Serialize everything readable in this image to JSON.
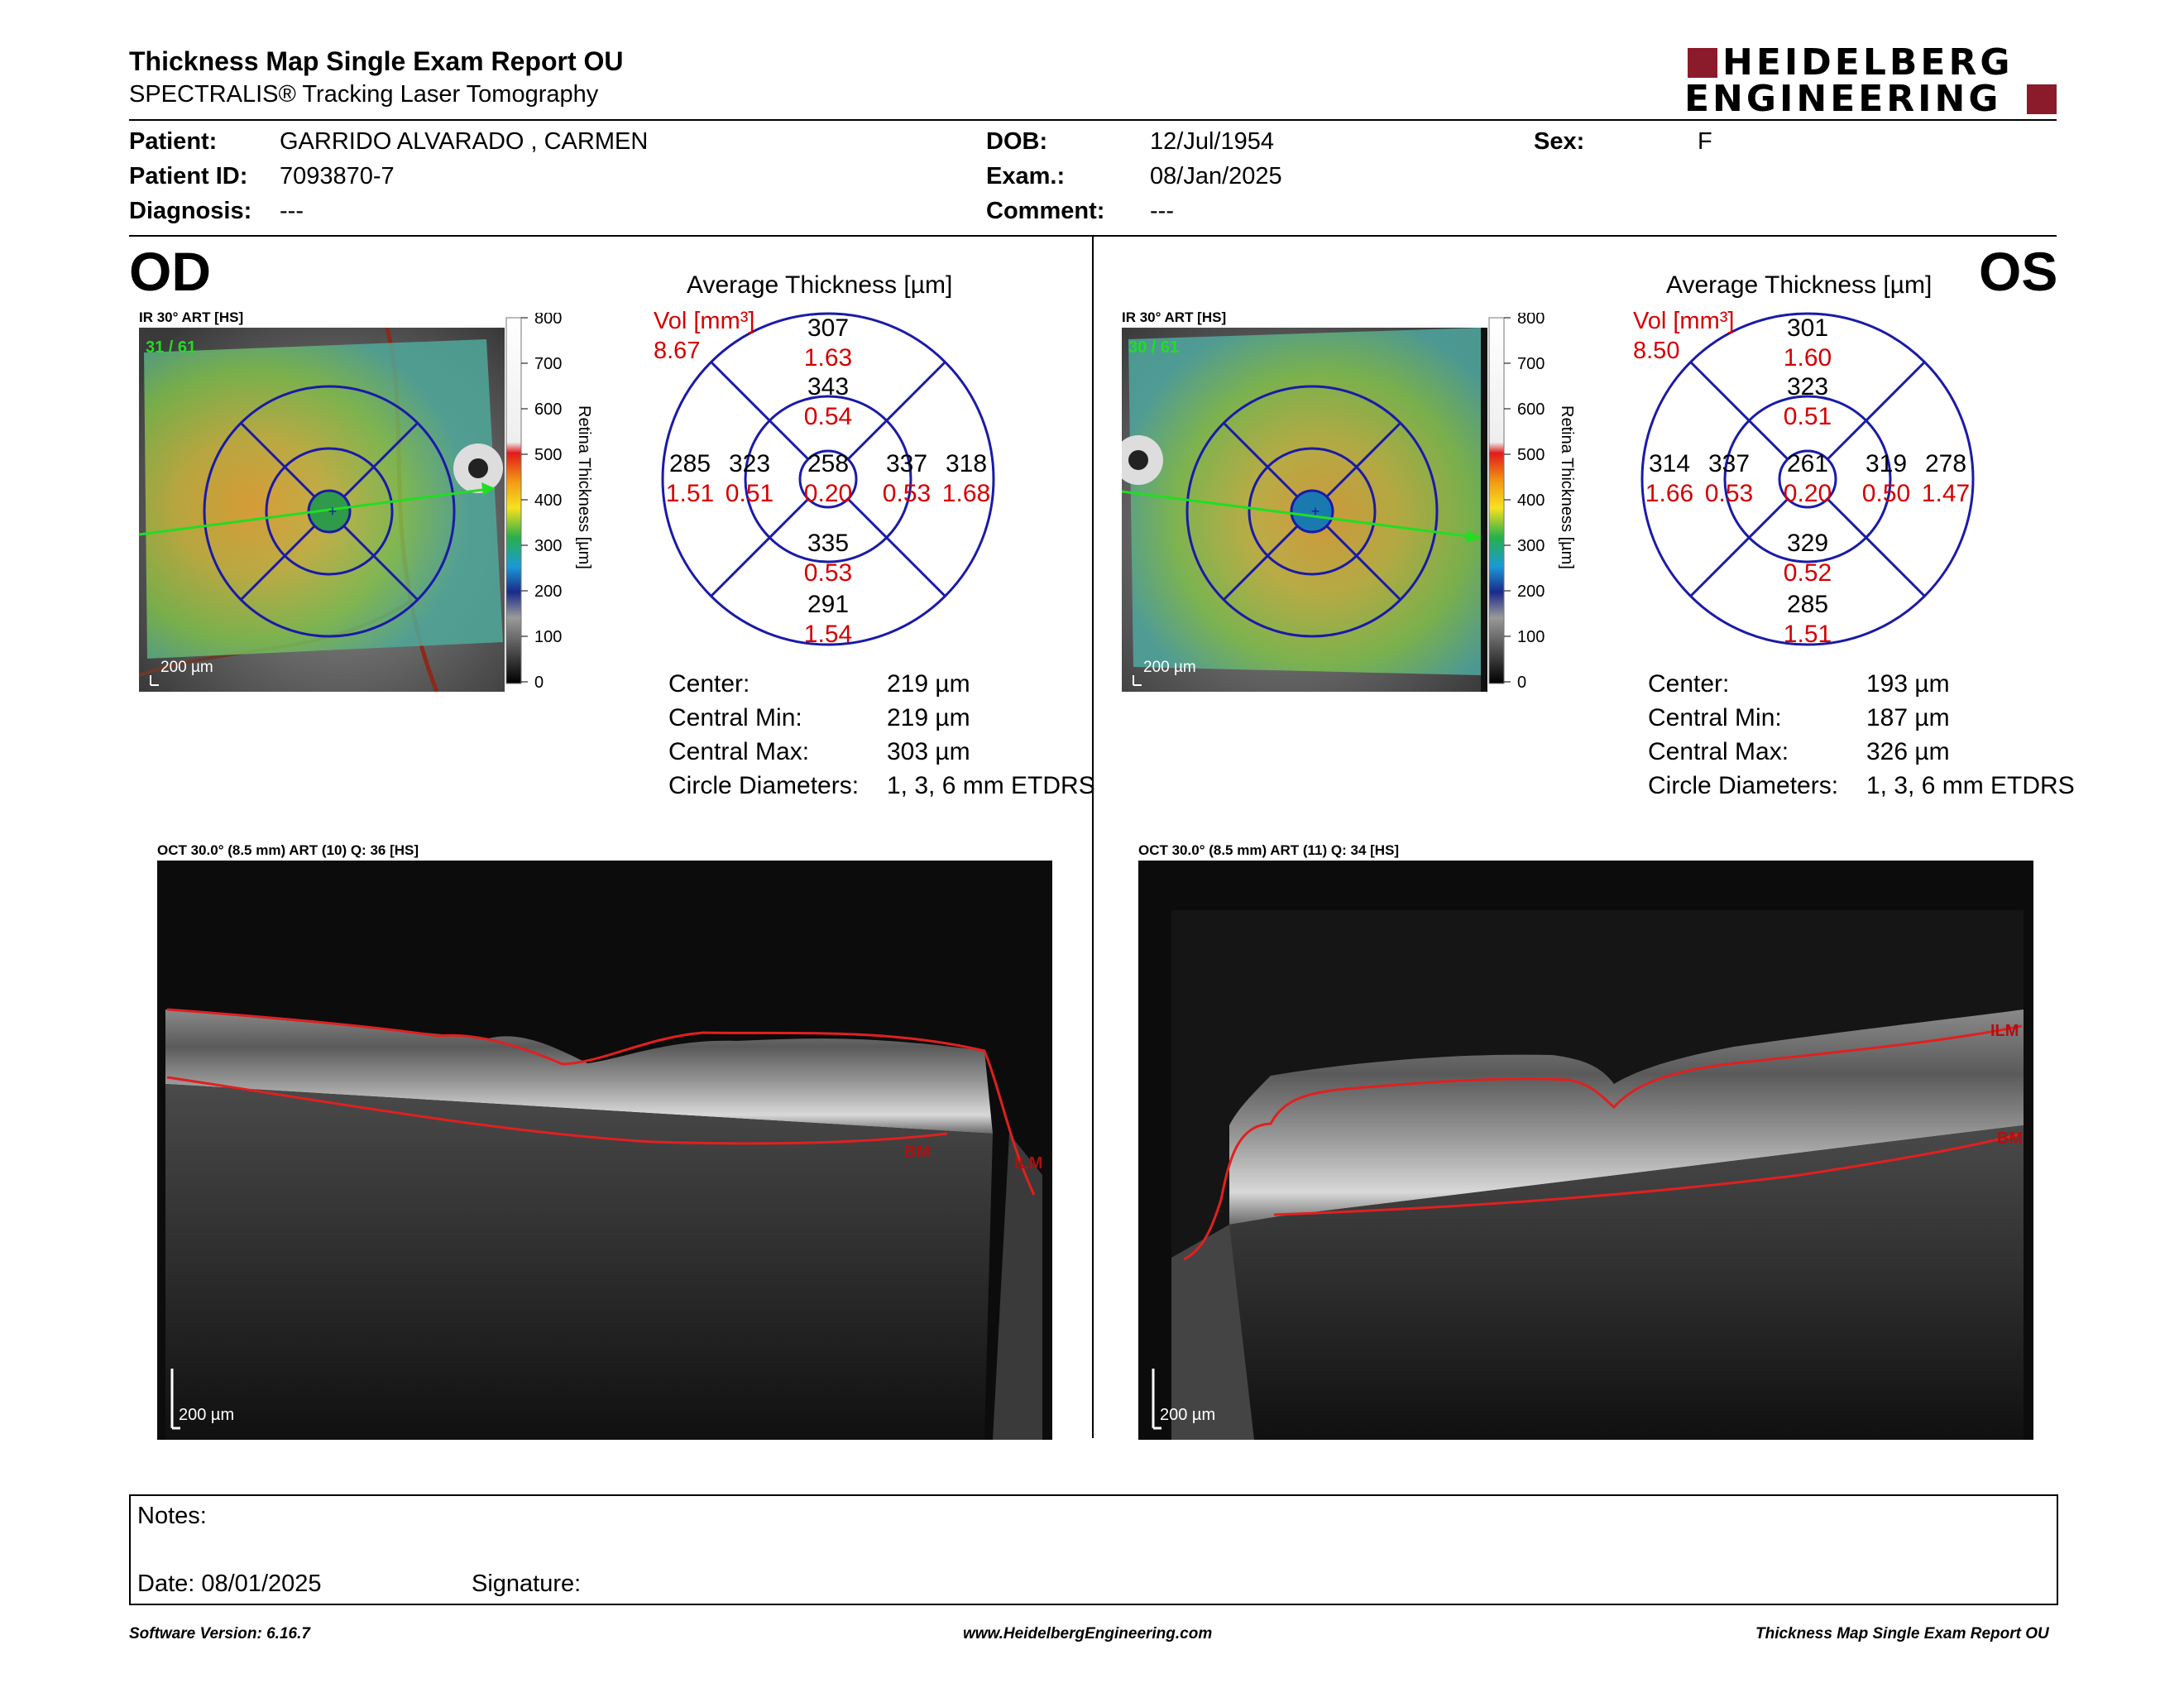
{
  "header": {
    "title": "Thickness Map Single Exam Report OU",
    "subtitle": "SPECTRALIS® Tracking Laser Tomography",
    "logo_line1": "HEIDELBERG",
    "logo_line2": "ENGINEERING",
    "brand_color": "#8b1a2a"
  },
  "patient": {
    "patient_label": "Patient:",
    "patient_value": "GARRIDO ALVARADO , CARMEN",
    "id_label": "Patient ID:",
    "id_value": "7093870-7",
    "diagnosis_label": "Diagnosis:",
    "diagnosis_value": "---",
    "dob_label": "DOB:",
    "dob_value": "12/Jul/1954",
    "exam_label": "Exam.:",
    "exam_value": "08/Jan/2025",
    "comment_label": "Comment:",
    "comment_value": "---",
    "sex_label": "Sex:",
    "sex_value": "F"
  },
  "scale": {
    "ticks": [
      "800",
      "700",
      "600",
      "500",
      "400",
      "300",
      "200",
      "100",
      "0"
    ],
    "label": "Retina Thickness [µm]"
  },
  "od": {
    "eye": "OD",
    "ir_label": "IR 30° ART [HS]",
    "frames": "31 / 61",
    "scalebar": "200 µm",
    "avg_title": "Average Thickness [µm]",
    "vol_label": "Vol [mm³]",
    "vol_total": "8.67",
    "grid": {
      "center": [
        "258",
        "0.20"
      ],
      "inner_sup": [
        "343",
        "0.54"
      ],
      "inner_inf": [
        "335",
        "0.53"
      ],
      "inner_left": [
        "323",
        "0.51"
      ],
      "inner_right": [
        "337",
        "0.53"
      ],
      "outer_sup": [
        "307",
        "1.63"
      ],
      "outer_inf": [
        "291",
        "1.54"
      ],
      "outer_left": [
        "285",
        "1.51"
      ],
      "outer_right": [
        "318",
        "1.68"
      ]
    },
    "stats": [
      {
        "label": "Center:",
        "value": "219 µm"
      },
      {
        "label": "Central Min:",
        "value": "219 µm"
      },
      {
        "label": "Central Max:",
        "value": "303 µm"
      },
      {
        "label": "Circle Diameters:",
        "value": "1, 3, 6 mm ETDRS"
      }
    ],
    "oct_label": "OCT 30.0° (8.5 mm) ART (10) Q: 36 [HS]",
    "oct_scalebar": "200 µm",
    "ilm": "ILM",
    "bm": "BM"
  },
  "os": {
    "eye": "OS",
    "ir_label": "IR 30° ART [HS]",
    "frames": "30 / 61",
    "scalebar": "200 µm",
    "avg_title": "Average Thickness [µm]",
    "vol_label": "Vol [mm³]",
    "vol_total": "8.50",
    "grid": {
      "center": [
        "261",
        "0.20"
      ],
      "inner_sup": [
        "323",
        "0.51"
      ],
      "inner_inf": [
        "329",
        "0.52"
      ],
      "inner_left": [
        "337",
        "0.53"
      ],
      "inner_right": [
        "319",
        "0.50"
      ],
      "outer_sup": [
        "301",
        "1.60"
      ],
      "outer_inf": [
        "285",
        "1.51"
      ],
      "outer_left": [
        "314",
        "1.66"
      ],
      "outer_right": [
        "278",
        "1.47"
      ]
    },
    "stats": [
      {
        "label": "Center:",
        "value": "193 µm"
      },
      {
        "label": "Central Min:",
        "value": "187 µm"
      },
      {
        "label": "Central Max:",
        "value": "326 µm"
      },
      {
        "label": "Circle Diameters:",
        "value": "1, 3, 6 mm ETDRS"
      }
    ],
    "oct_label": "OCT 30.0° (8.5 mm) ART (11) Q: 34 [HS]",
    "oct_scalebar": "200 µm",
    "ilm": "ILM",
    "bm": "BM"
  },
  "notes": {
    "notes_label": "Notes:",
    "date_label": "Date: 08/01/2025",
    "signature_label": "Signature:"
  },
  "footer": {
    "software": "Software Version: 6.16.7",
    "url": "www.HeidelbergEngineering.com",
    "report": "Thickness Map Single Exam Report OU"
  }
}
